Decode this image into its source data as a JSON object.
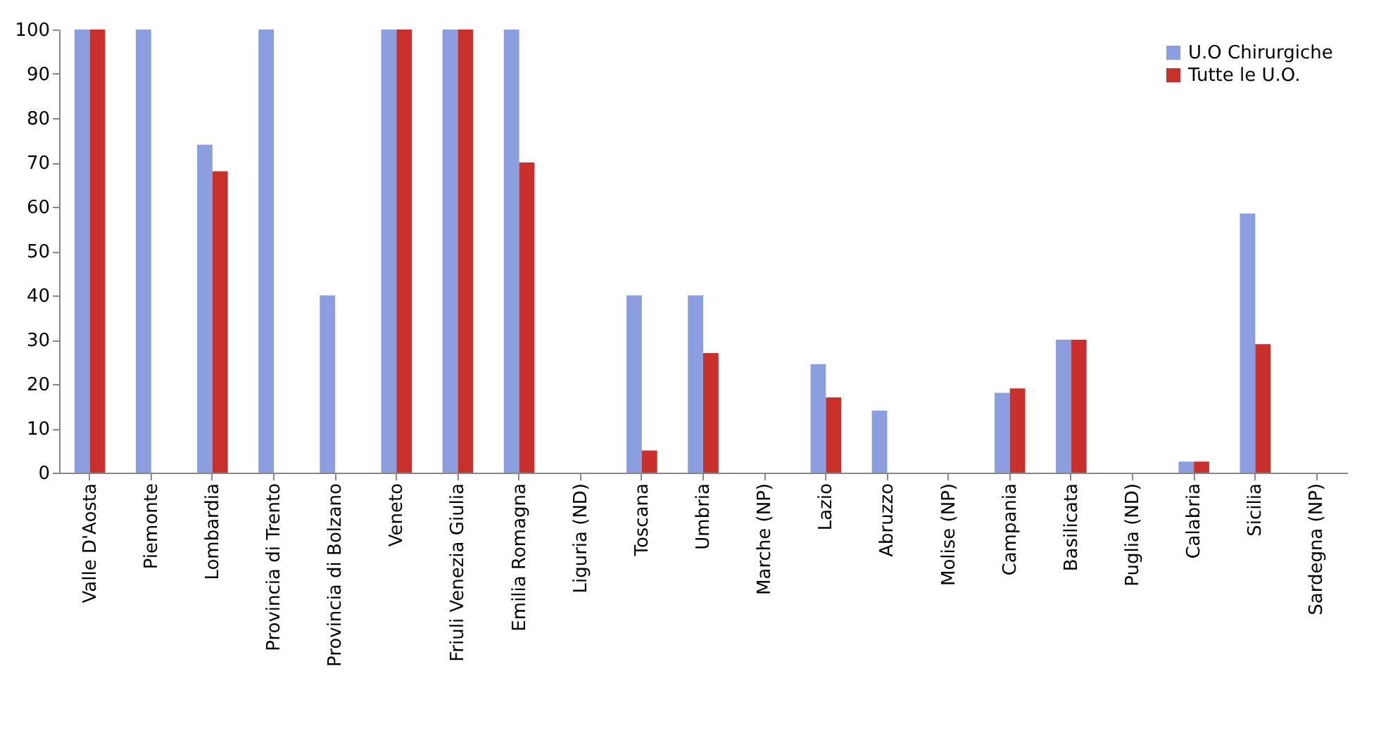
{
  "chart_data": {
    "type": "bar",
    "categories": [
      "Valle D'Aosta",
      "Piemonte",
      "Lombardia",
      "Provincia di Trento",
      "Provincia di Bolzano",
      "Veneto",
      "Friuli Venezia Giulia",
      "Emilia Romagna",
      "Liguria (ND)",
      "Toscana",
      "Umbria",
      "Marche (NP)",
      "Lazio",
      "Abruzzo",
      "Molise (NP)",
      "Campania",
      "Basilicata",
      "Puglia (ND)",
      "Calabria",
      "Sicilia",
      "Sardegna (NP)"
    ],
    "series": [
      {
        "name": "U.O Chirurgiche",
        "color": "#8b9fe0",
        "values": [
          100,
          100,
          74,
          100,
          40,
          100,
          100,
          100,
          null,
          40,
          40,
          null,
          24.5,
          14,
          null,
          18,
          30,
          null,
          2.5,
          58.5,
          null
        ]
      },
      {
        "name": "Tutte le U.O.",
        "color": "#c9302c",
        "values": [
          100,
          null,
          68,
          null,
          null,
          100,
          100,
          70,
          null,
          5,
          27,
          null,
          17,
          null,
          null,
          19,
          30,
          null,
          2.5,
          29,
          null
        ]
      }
    ],
    "ylim": [
      0,
      100
    ],
    "yticks": [
      0,
      10,
      20,
      30,
      40,
      50,
      60,
      70,
      80,
      90,
      100
    ],
    "grid": false,
    "legend": "top right"
  }
}
